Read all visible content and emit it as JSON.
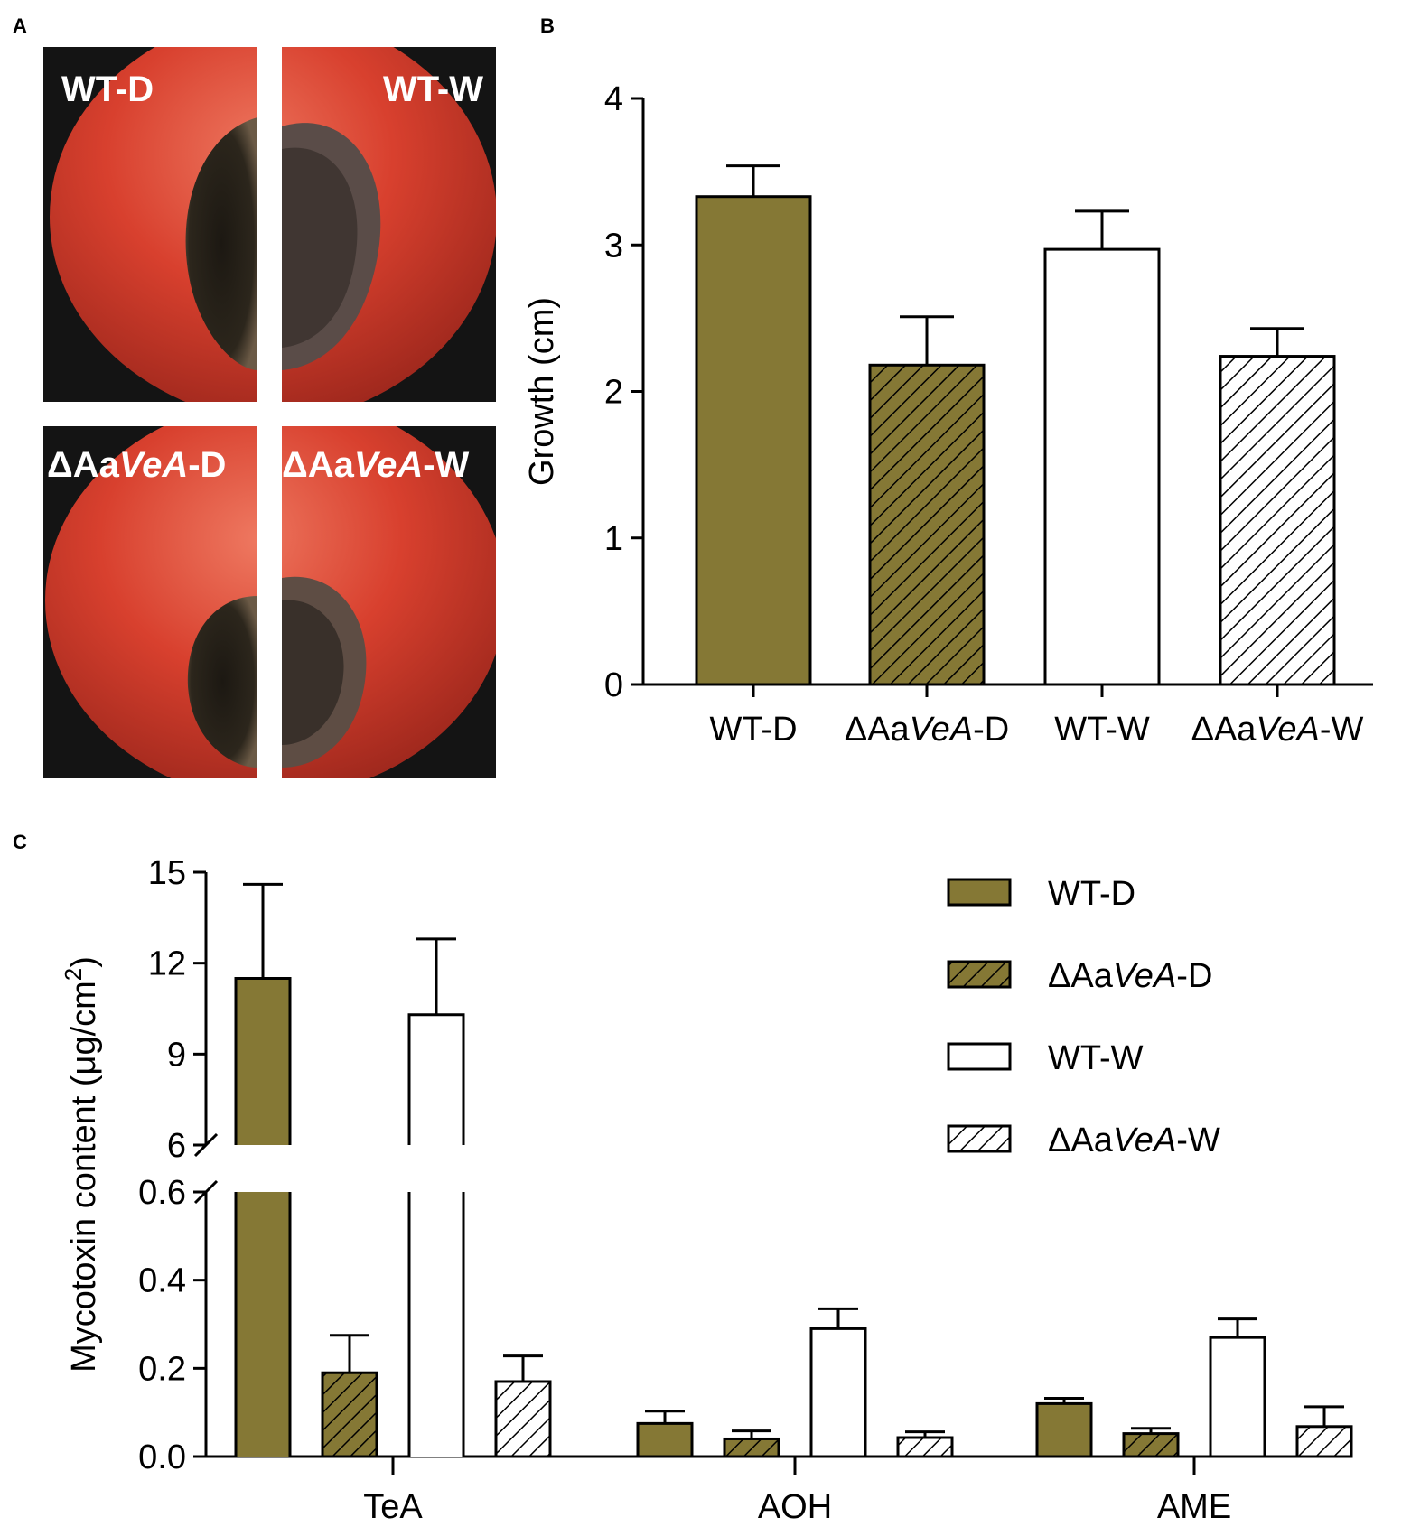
{
  "panels": {
    "a_letter": "A",
    "b_letter": "B",
    "c_letter": "C"
  },
  "photos": {
    "labels": [
      {
        "prefix": "",
        "italic": "",
        "suffix": "WT-D"
      },
      {
        "prefix": "",
        "italic": "",
        "suffix": "WT-W"
      },
      {
        "prefix": "ΔAa",
        "italic": "VeA",
        "suffix": "-D"
      },
      {
        "prefix": "ΔAa",
        "italic": "VeA",
        "suffix": "-W"
      }
    ],
    "colors": {
      "background": "#141414",
      "fruit": "#cf3b2b",
      "fruit_light": "#ec6a56",
      "lesion": "#2a2418",
      "lesion_edge": "#6b5a46"
    }
  },
  "chart_data": [
    {
      "id": "B",
      "type": "bar",
      "title": "",
      "xlabel": "",
      "ylabel": "Growth (cm)",
      "ylim": [
        0,
        4
      ],
      "yticks": [
        0,
        1,
        2,
        3,
        4
      ],
      "categories": [
        {
          "prefix": "",
          "italic": "",
          "suffix": "WT-D"
        },
        {
          "prefix": "ΔAa",
          "italic": "VeA",
          "suffix": "-D"
        },
        {
          "prefix": "",
          "italic": "",
          "suffix": "WT-W"
        },
        {
          "prefix": "ΔAa",
          "italic": "VeA",
          "suffix": "-W"
        }
      ],
      "values": [
        3.33,
        2.18,
        2.97,
        2.24
      ],
      "errors": [
        0.21,
        0.33,
        0.26,
        0.19
      ],
      "styles": [
        "solid-olive",
        "hatch-olive",
        "white",
        "hatch-white"
      ]
    },
    {
      "id": "C",
      "type": "bar",
      "title": "",
      "xlabel": "",
      "ylabel": "Mycotoxin content (μg/cm²)",
      "ylabel_main": "Mycotoxin content (μg/cm",
      "ylabel_sup": "2",
      "ylabel_close": ")",
      "broken_axis": {
        "lower": {
          "range": [
            0,
            0.6
          ],
          "ticks": [
            "0.0",
            "0.2",
            "0.4",
            "0.6"
          ]
        },
        "upper": {
          "range": [
            6,
            15
          ],
          "ticks": [
            "6",
            "9",
            "12",
            "15"
          ]
        }
      },
      "categories": [
        "TeA",
        "AOH",
        "AME"
      ],
      "series": [
        {
          "name": {
            "prefix": "",
            "italic": "",
            "suffix": "WT-D"
          },
          "style": "solid-olive",
          "values": [
            11.5,
            0.075,
            0.12
          ],
          "errors": [
            3.1,
            0.028,
            0.012
          ]
        },
        {
          "name": {
            "prefix": "ΔAa",
            "italic": "VeA",
            "suffix": "-D"
          },
          "style": "hatch-olive",
          "values": [
            0.19,
            0.04,
            0.052
          ],
          "errors": [
            0.085,
            0.018,
            0.012
          ]
        },
        {
          "name": {
            "prefix": "",
            "italic": "",
            "suffix": "WT-W"
          },
          "style": "white",
          "values": [
            10.3,
            0.29,
            0.27
          ],
          "errors": [
            2.5,
            0.045,
            0.042
          ]
        },
        {
          "name": {
            "prefix": "ΔAa",
            "italic": "VeA",
            "suffix": "-W"
          },
          "style": "hatch-white",
          "values": [
            0.17,
            0.043,
            0.068
          ],
          "errors": [
            0.058,
            0.013,
            0.045
          ]
        }
      ],
      "legend": "top-right"
    }
  ],
  "colors": {
    "olive": "#857835",
    "white": "#ffffff",
    "stroke": "#000000"
  }
}
